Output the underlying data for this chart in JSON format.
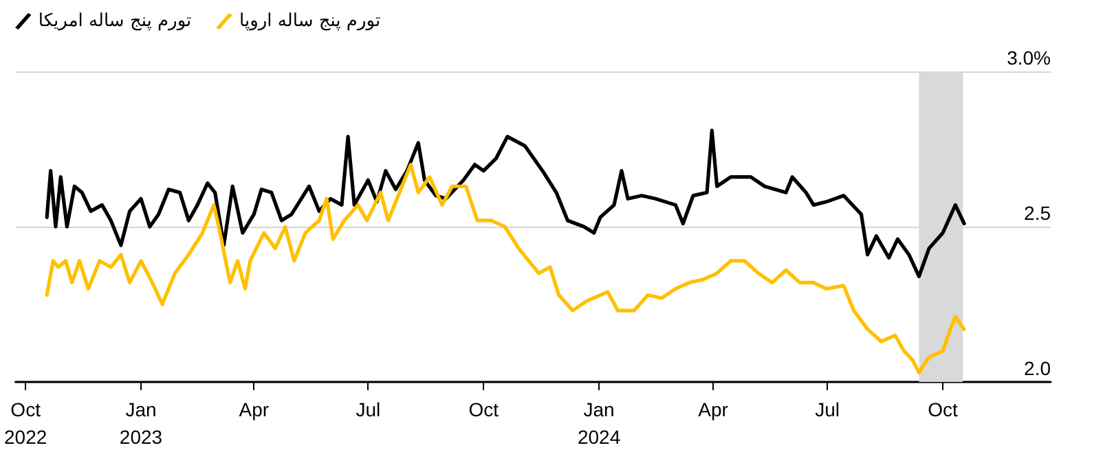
{
  "chart_data": {
    "type": "line",
    "xlim": [
      "2022-09-23",
      "2024-12-26"
    ],
    "xticks": [
      {
        "value": "2022-10-01",
        "label": "Oct\n2022"
      },
      {
        "value": "2023-01-01",
        "label": "Jan\n2023"
      },
      {
        "value": "2023-04-01",
        "label": "Apr"
      },
      {
        "value": "2023-07-01",
        "label": "Jul"
      },
      {
        "value": "2023-10-01",
        "label": "Oct"
      },
      {
        "value": "2024-01-01",
        "label": "Jan\n2024"
      },
      {
        "value": "2024-04-01",
        "label": "Apr"
      },
      {
        "value": "2024-07-01",
        "label": "Jul"
      },
      {
        "value": "2024-10-01",
        "label": "Oct"
      }
    ],
    "ylim": [
      2.0,
      3.0
    ],
    "yticks": [
      {
        "value": 2.0,
        "label": "2.0"
      },
      {
        "value": 2.5,
        "label": "2.5"
      },
      {
        "value": 3.0,
        "label": "3.0%"
      }
    ],
    "grid": "y",
    "legend": "top left",
    "marker": "none",
    "line_style": "solid",
    "bands": [
      {
        "axis": "x",
        "from": "2024-09-12",
        "to": "2024-10-17",
        "color": "#d9d9d9"
      }
    ],
    "series": [
      {
        "name": "تورم پنج ساله امریکا",
        "color": "#000000",
        "x": [
          "2022-10-18",
          "2022-10-21",
          "2022-10-25",
          "2022-10-29",
          "2022-11-03",
          "2022-11-09",
          "2022-11-15",
          "2022-11-22",
          "2022-12-01",
          "2022-12-08",
          "2022-12-16",
          "2022-12-23",
          "2023-01-01",
          "2023-01-08",
          "2023-01-15",
          "2023-01-23",
          "2023-02-01",
          "2023-02-08",
          "2023-02-15",
          "2023-02-23",
          "2023-03-01",
          "2023-03-08",
          "2023-03-15",
          "2023-03-23",
          "2023-04-01",
          "2023-04-07",
          "2023-04-15",
          "2023-04-23",
          "2023-05-01",
          "2023-05-15",
          "2023-05-23",
          "2023-06-01",
          "2023-06-10",
          "2023-06-15",
          "2023-06-20",
          "2023-07-01",
          "2023-07-08",
          "2023-07-15",
          "2023-07-23",
          "2023-08-01",
          "2023-08-10",
          "2023-08-15",
          "2023-08-24",
          "2023-09-01",
          "2023-09-15",
          "2023-09-24",
          "2023-10-01",
          "2023-10-11",
          "2023-10-20",
          "2023-11-03",
          "2023-11-17",
          "2023-11-28",
          "2023-12-07",
          "2023-12-20",
          "2023-12-28",
          "2024-01-02",
          "2024-01-13",
          "2024-01-19",
          "2024-01-24",
          "2024-02-04",
          "2024-02-15",
          "2024-03-02",
          "2024-03-08",
          "2024-03-16",
          "2024-03-27",
          "2024-03-31",
          "2024-04-04",
          "2024-04-15",
          "2024-05-01",
          "2024-05-12",
          "2024-05-29",
          "2024-06-03",
          "2024-06-14",
          "2024-06-20",
          "2024-06-30",
          "2024-07-14",
          "2024-07-28",
          "2024-08-02",
          "2024-08-09",
          "2024-08-19",
          "2024-08-26",
          "2024-09-04",
          "2024-09-12",
          "2024-09-20",
          "2024-10-01",
          "2024-10-11",
          "2024-10-18"
        ],
        "values": [
          2.53,
          2.68,
          2.5,
          2.66,
          2.5,
          2.63,
          2.61,
          2.55,
          2.57,
          2.52,
          2.44,
          2.55,
          2.59,
          2.5,
          2.54,
          2.62,
          2.61,
          2.52,
          2.57,
          2.64,
          2.61,
          2.44,
          2.63,
          2.48,
          2.54,
          2.62,
          2.61,
          2.52,
          2.54,
          2.63,
          2.55,
          2.59,
          2.57,
          2.79,
          2.57,
          2.65,
          2.58,
          2.68,
          2.62,
          2.68,
          2.77,
          2.65,
          2.6,
          2.59,
          2.65,
          2.7,
          2.68,
          2.72,
          2.79,
          2.76,
          2.68,
          2.61,
          2.52,
          2.5,
          2.48,
          2.53,
          2.57,
          2.68,
          2.59,
          2.6,
          2.59,
          2.57,
          2.51,
          2.6,
          2.61,
          2.81,
          2.63,
          2.66,
          2.66,
          2.63,
          2.61,
          2.66,
          2.61,
          2.57,
          2.58,
          2.6,
          2.54,
          2.41,
          2.47,
          2.4,
          2.46,
          2.41,
          2.34,
          2.43,
          2.48,
          2.57,
          2.51
        ]
      },
      {
        "name": "تورم پنج ساله اروپا",
        "color": "#ffc000",
        "x": [
          "2022-10-18",
          "2022-10-23",
          "2022-10-27",
          "2022-11-02",
          "2022-11-07",
          "2022-11-13",
          "2022-11-20",
          "2022-11-29",
          "2022-12-08",
          "2022-12-16",
          "2022-12-23",
          "2023-01-01",
          "2023-01-10",
          "2023-01-18",
          "2023-01-28",
          "2023-02-08",
          "2023-02-19",
          "2023-02-28",
          "2023-03-04",
          "2023-03-13",
          "2023-03-19",
          "2023-03-25",
          "2023-03-29",
          "2023-04-09",
          "2023-04-18",
          "2023-04-26",
          "2023-05-03",
          "2023-05-12",
          "2023-05-23",
          "2023-05-29",
          "2023-06-03",
          "2023-06-12",
          "2023-06-23",
          "2023-06-30",
          "2023-07-11",
          "2023-07-17",
          "2023-07-28",
          "2023-08-04",
          "2023-08-10",
          "2023-08-19",
          "2023-08-29",
          "2023-09-06",
          "2023-09-17",
          "2023-09-26",
          "2023-10-07",
          "2023-10-18",
          "2023-10-29",
          "2023-11-06",
          "2023-11-14",
          "2023-11-23",
          "2023-11-30",
          "2023-12-11",
          "2023-12-22",
          "2024-01-08",
          "2024-01-16",
          "2024-01-29",
          "2024-02-09",
          "2024-02-20",
          "2024-03-02",
          "2024-03-13",
          "2024-03-24",
          "2024-04-04",
          "2024-04-15",
          "2024-04-26",
          "2024-05-07",
          "2024-05-18",
          "2024-05-29",
          "2024-06-09",
          "2024-06-20",
          "2024-06-30",
          "2024-07-14",
          "2024-07-22",
          "2024-08-02",
          "2024-08-13",
          "2024-08-24",
          "2024-08-31",
          "2024-09-07",
          "2024-09-12",
          "2024-09-20",
          "2024-10-01",
          "2024-10-07",
          "2024-10-11",
          "2024-10-18"
        ],
        "values": [
          2.28,
          2.39,
          2.37,
          2.39,
          2.32,
          2.39,
          2.3,
          2.39,
          2.37,
          2.41,
          2.32,
          2.39,
          2.32,
          2.25,
          2.35,
          2.41,
          2.48,
          2.57,
          2.5,
          2.32,
          2.39,
          2.3,
          2.39,
          2.48,
          2.43,
          2.5,
          2.39,
          2.48,
          2.52,
          2.59,
          2.46,
          2.52,
          2.57,
          2.52,
          2.61,
          2.52,
          2.63,
          2.7,
          2.61,
          2.66,
          2.57,
          2.63,
          2.63,
          2.52,
          2.52,
          2.5,
          2.43,
          2.39,
          2.35,
          2.37,
          2.28,
          2.23,
          2.26,
          2.29,
          2.23,
          2.23,
          2.28,
          2.27,
          2.3,
          2.32,
          2.33,
          2.35,
          2.39,
          2.39,
          2.35,
          2.32,
          2.36,
          2.32,
          2.32,
          2.3,
          2.31,
          2.23,
          2.17,
          2.13,
          2.15,
          2.1,
          2.07,
          2.03,
          2.08,
          2.1,
          2.17,
          2.21,
          2.17
        ]
      }
    ]
  }
}
